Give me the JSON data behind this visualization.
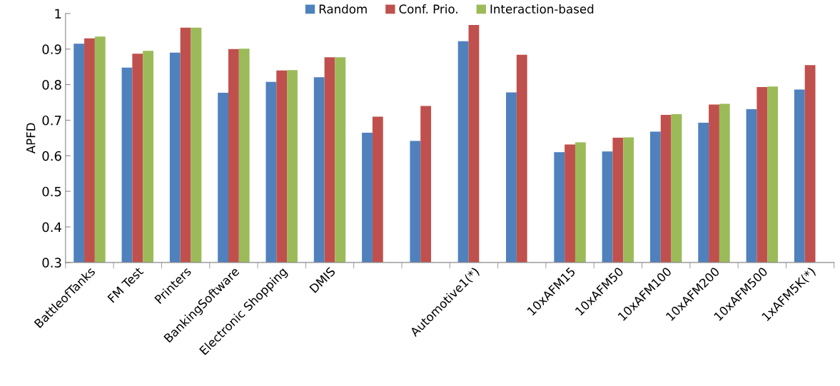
{
  "chart_data": {
    "type": "bar",
    "ylabel": "APFD",
    "categories": [
      "BattleofTanks",
      "FM Test",
      "Printers",
      "BankingSoftware",
      "Electronic Shopping",
      "DMIS",
      null,
      null,
      "Automotive1(*)",
      null,
      "10xAFM15",
      "10xAFM50",
      "10xAFM100",
      "10xAFM200",
      "10xAFM500",
      "1xAFM5K(*)"
    ],
    "series": [
      {
        "name": "Random",
        "color": "#4f81bd",
        "values": [
          0.915,
          0.848,
          0.89,
          0.777,
          0.808,
          0.821,
          0.665,
          0.642,
          0.922,
          0.778,
          0.61,
          0.612,
          0.668,
          0.693,
          0.731,
          0.786
        ]
      },
      {
        "name": "Conf. Prio.",
        "color": "#c0504d",
        "values": [
          0.93,
          0.887,
          0.96,
          0.9,
          0.84,
          0.877,
          0.71,
          0.74,
          0.968,
          0.884,
          0.632,
          0.651,
          0.715,
          0.744,
          0.793,
          0.855
        ]
      },
      {
        "name": "Interaction-based",
        "color": "#9bbb59",
        "values": [
          0.935,
          0.895,
          0.96,
          0.901,
          0.841,
          0.877,
          null,
          null,
          null,
          null,
          0.638,
          0.652,
          0.717,
          0.746,
          0.795,
          null
        ]
      }
    ],
    "ylim": [
      0.3,
      1
    ],
    "yticks": [
      0.3,
      0.4,
      0.5,
      0.6,
      0.7,
      0.8,
      0.9,
      {
        "value": 1,
        "label": "1"
      }
    ],
    "grid": false,
    "legend": "top"
  }
}
